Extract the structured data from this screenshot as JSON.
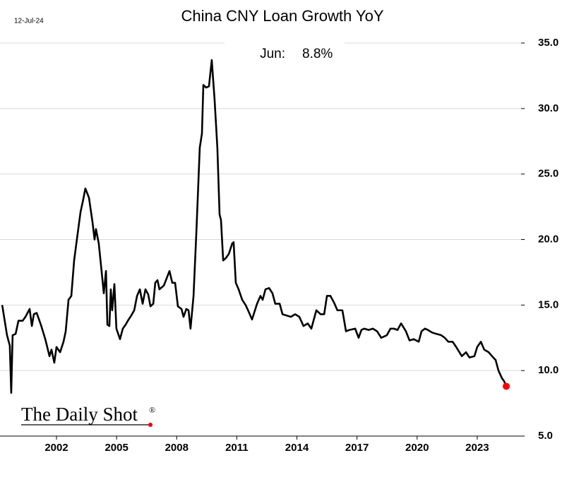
{
  "chart_data": {
    "type": "line",
    "title": "China CNY Loan Growth YoY",
    "date": "12-Jul-24",
    "source": "The Daily Shot",
    "source_mark": "®",
    "annotation": {
      "label": "Jun:",
      "value": "8.8%"
    },
    "xlim": [
      1999.18,
      2025.19
    ],
    "xticks": [
      2002,
      2005,
      2008,
      2011,
      2014,
      2017,
      2020,
      2023
    ],
    "ylim": [
      5,
      35
    ],
    "yticks": [
      {
        "value": 5,
        "label": "5.0"
      },
      {
        "value": 10,
        "label": "10.0"
      },
      {
        "value": 15,
        "label": "15.0"
      },
      {
        "value": 20,
        "label": "20.0"
      },
      {
        "value": 25,
        "label": "25.0"
      },
      {
        "value": 30,
        "label": "30.0"
      },
      {
        "value": 35,
        "label": "35.0"
      }
    ],
    "grid": true,
    "color": "#000000",
    "last_point_color": "#ff0000",
    "x": [
      1999.29,
      1999.53,
      1999.67,
      1999.74,
      1999.81,
      1999.96,
      2000.1,
      2000.31,
      2000.45,
      2000.66,
      2000.77,
      2000.87,
      2001.01,
      2001.22,
      2001.44,
      2001.65,
      2001.75,
      2001.89,
      2002.0,
      2002.18,
      2002.35,
      2002.46,
      2002.6,
      2002.74,
      2002.88,
      2003.06,
      2003.2,
      2003.34,
      2003.44,
      2003.62,
      2003.8,
      2003.9,
      2003.97,
      2004.11,
      2004.25,
      2004.36,
      2004.47,
      2004.54,
      2004.64,
      2004.71,
      2004.78,
      2004.89,
      2004.99,
      2005.17,
      2005.31,
      2005.45,
      2005.56,
      2005.73,
      2005.88,
      2006.02,
      2006.16,
      2006.3,
      2006.44,
      2006.58,
      2006.69,
      2006.83,
      2006.93,
      2007.04,
      2007.14,
      2007.36,
      2007.64,
      2007.78,
      2007.92,
      2008.06,
      2008.24,
      2008.34,
      2008.48,
      2008.59,
      2008.69,
      2008.84,
      2008.98,
      2009.08,
      2009.15,
      2009.26,
      2009.33,
      2009.47,
      2009.61,
      2009.75,
      2009.89,
      2010.03,
      2010.14,
      2010.21,
      2010.32,
      2010.46,
      2010.6,
      2010.77,
      2010.84,
      2010.95,
      2011.09,
      2011.27,
      2011.44,
      2011.62,
      2011.76,
      2012.01,
      2012.18,
      2012.29,
      2012.43,
      2012.61,
      2012.78,
      2012.92,
      2013.14,
      2013.28,
      2013.49,
      2013.7,
      2013.91,
      2014.12,
      2014.33,
      2014.54,
      2014.72,
      2014.97,
      2015.18,
      2015.36,
      2015.5,
      2015.67,
      2015.85,
      2016.02,
      2016.27,
      2016.45,
      2016.62,
      2016.91,
      2017.08,
      2017.22,
      2017.36,
      2017.58,
      2017.79,
      2018.0,
      2018.21,
      2018.49,
      2018.67,
      2018.84,
      2019.02,
      2019.2,
      2019.44,
      2019.62,
      2019.83,
      2020.08,
      2020.22,
      2020.39,
      2020.54,
      2020.75,
      2020.96,
      2021.2,
      2021.38,
      2021.56,
      2021.77,
      2021.95,
      2022.23,
      2022.44,
      2022.61,
      2022.86,
      2023.0,
      2023.18,
      2023.35,
      2023.57,
      2023.74,
      2023.92,
      2024.06,
      2024.24,
      2024.34,
      2024.45
    ],
    "values": [
      15.0,
      12.7,
      11.9,
      8.3,
      12.7,
      12.8,
      13.8,
      13.8,
      14.1,
      14.7,
      13.4,
      14.3,
      14.4,
      13.5,
      12.4,
      11.1,
      11.6,
      10.6,
      11.8,
      11.4,
      12.2,
      13.0,
      15.4,
      15.7,
      18.4,
      20.5,
      22.1,
      23.1,
      23.9,
      23.2,
      21.3,
      20.0,
      20.8,
      19.7,
      17.6,
      15.9,
      17.6,
      13.5,
      13.4,
      16.2,
      14.6,
      16.6,
      13.2,
      12.4,
      13.2,
      13.5,
      13.8,
      14.2,
      14.6,
      15.7,
      16.2,
      15.1,
      16.2,
      15.8,
      14.9,
      15.1,
      16.7,
      16.9,
      16.2,
      16.5,
      17.6,
      16.7,
      16.7,
      14.9,
      14.7,
      14.1,
      14.7,
      14.6,
      13.2,
      15.7,
      20.5,
      24.3,
      27.0,
      28.1,
      31.8,
      31.6,
      31.7,
      33.7,
      30.7,
      27.0,
      21.9,
      21.5,
      18.4,
      18.6,
      18.9,
      19.7,
      19.8,
      16.7,
      16.2,
      15.4,
      15.0,
      14.4,
      13.9,
      15.1,
      15.7,
      15.4,
      16.2,
      16.3,
      15.9,
      15.1,
      15.1,
      14.3,
      14.2,
      14.1,
      14.3,
      14.1,
      13.4,
      13.6,
      13.2,
      14.6,
      14.3,
      14.3,
      15.7,
      15.7,
      15.2,
      14.6,
      14.6,
      13.0,
      13.1,
      13.2,
      12.5,
      13.1,
      13.2,
      13.1,
      13.2,
      13.0,
      12.5,
      12.7,
      13.2,
      13.2,
      13.1,
      13.6,
      13.0,
      12.3,
      12.4,
      12.2,
      13.0,
      13.2,
      13.1,
      12.9,
      12.8,
      12.7,
      12.5,
      12.2,
      12.2,
      11.8,
      11.1,
      11.4,
      11.0,
      11.1,
      11.8,
      12.2,
      11.6,
      11.4,
      11.1,
      10.8,
      10.0,
      9.4,
      9.2,
      8.8
    ]
  }
}
